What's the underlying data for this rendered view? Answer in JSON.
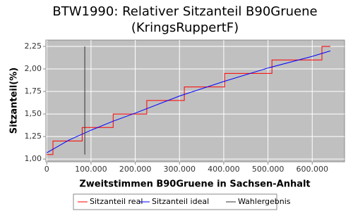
{
  "chart_data": {
    "type": "line",
    "title": [
      "BTW1990: Relativer Sitzanteil B90Gruene",
      "(KringsRuppertF)"
    ],
    "x_label": "Zweitstimmen B90Gruene in Sachsen-Anhalt",
    "y_label": "Sitzanteil(%)",
    "xlim": [
      -2000,
      673000
    ],
    "ylim": [
      0.97,
      2.32
    ],
    "xticks": [
      0,
      {
        "value": 100000,
        "label": "100.000"
      },
      {
        "value": 200000,
        "label": "200.000"
      },
      {
        "value": 300000,
        "label": "300.000"
      },
      {
        "value": 400000,
        "label": "400.000"
      },
      {
        "value": 500000,
        "label": "500.000"
      },
      {
        "value": 600000,
        "label": "600.000"
      }
    ],
    "yticks": [
      {
        "value": 1.0,
        "label": "1,00"
      },
      {
        "value": 1.25,
        "label": "1,25"
      },
      {
        "value": 1.5,
        "label": "1,50"
      },
      {
        "value": 1.75,
        "label": "1,75"
      },
      {
        "value": 2.0,
        "label": "2,00"
      },
      {
        "value": 2.25,
        "label": "2,25"
      }
    ],
    "grid": true,
    "background": "#c0c0c0",
    "series": [
      {
        "name": "Sitzanteil real",
        "color": "#ff0000",
        "x": [
          0,
          14000,
          14000,
          80000,
          80000,
          150000,
          150000,
          226000,
          226000,
          311000,
          311000,
          402000,
          402000,
          509000,
          509000,
          622000,
          622000,
          641000
        ],
        "values": [
          1.05,
          1.05,
          1.2,
          1.2,
          1.35,
          1.35,
          1.5,
          1.5,
          1.65,
          1.65,
          1.8,
          1.8,
          1.95,
          1.95,
          2.1,
          2.1,
          2.25,
          2.25
        ]
      },
      {
        "name": "Sitzanteil ideal",
        "color": "#0000ff",
        "x": [
          0,
          50000,
          100000,
          150000,
          200000,
          300000,
          400000,
          500000,
          600000,
          641000
        ],
        "values": [
          1.07,
          1.21,
          1.32,
          1.42,
          1.51,
          1.7,
          1.86,
          2.01,
          2.14,
          2.2
        ]
      },
      {
        "name": "Wahlergebnis",
        "color": "#333333",
        "x": [
          86000,
          86000
        ],
        "values": [
          1.05,
          2.25
        ]
      }
    ]
  }
}
